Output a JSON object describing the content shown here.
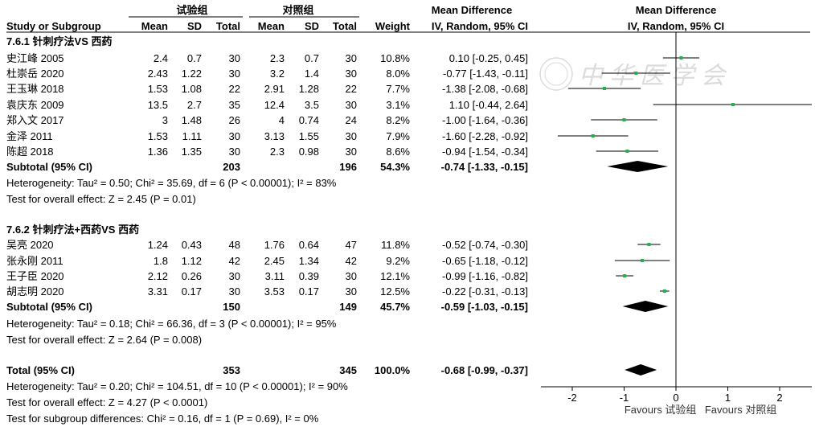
{
  "chart_data": {
    "type": "forest",
    "headers": {
      "group_exp": "试验组",
      "group_ctrl": "对照组",
      "study": "Study or Subgroup",
      "mean": "Mean",
      "sd": "SD",
      "total": "Total",
      "weight": "Weight",
      "md_title": "Mean Difference",
      "md_method": "IV, Random, 95% CI",
      "plot_title": "Mean Difference",
      "plot_method": "IV, Random, 95% CI"
    },
    "subgroups": [
      {
        "label": "7.6.1 针刺疗法VS 西药",
        "studies": [
          {
            "name": "史江峰 2005",
            "em": "2.4",
            "esd": "0.7",
            "en": "30",
            "cm": "2.3",
            "csd": "0.7",
            "cn": "30",
            "w": "10.8%",
            "ci": "0.10 [-0.25, 0.45]",
            "md": 0.1,
            "lo": -0.25,
            "hi": 0.45
          },
          {
            "name": "杜崇岳 2020",
            "em": "2.43",
            "esd": "1.22",
            "en": "30",
            "cm": "3.2",
            "csd": "1.4",
            "cn": "30",
            "w": "8.0%",
            "ci": "-0.77 [-1.43, -0.11]",
            "md": -0.77,
            "lo": -1.43,
            "hi": -0.11
          },
          {
            "name": "王玉琳 2018",
            "em": "1.53",
            "esd": "1.08",
            "en": "22",
            "cm": "2.91",
            "csd": "1.28",
            "cn": "22",
            "w": "7.7%",
            "ci": "-1.38 [-2.08, -0.68]",
            "md": -1.38,
            "lo": -2.08,
            "hi": -0.68
          },
          {
            "name": "袁庆东 2009",
            "em": "13.5",
            "esd": "2.7",
            "en": "35",
            "cm": "12.4",
            "csd": "3.5",
            "cn": "30",
            "w": "3.1%",
            "ci": "1.10 [-0.44, 2.64]",
            "md": 1.1,
            "lo": -0.44,
            "hi": 2.64
          },
          {
            "name": "郑入文 2017",
            "em": "3",
            "esd": "1.48",
            "en": "26",
            "cm": "4",
            "csd": "0.74",
            "cn": "24",
            "w": "8.2%",
            "ci": "-1.00 [-1.64, -0.36]",
            "md": -1.0,
            "lo": -1.64,
            "hi": -0.36
          },
          {
            "name": "金泽 2011",
            "em": "1.53",
            "esd": "1.11",
            "en": "30",
            "cm": "3.13",
            "csd": "1.55",
            "cn": "30",
            "w": "7.9%",
            "ci": "-1.60 [-2.28, -0.92]",
            "md": -1.6,
            "lo": -2.28,
            "hi": -0.92
          },
          {
            "name": "陈超 2018",
            "em": "1.36",
            "esd": "1.35",
            "en": "30",
            "cm": "2.3",
            "csd": "0.98",
            "cn": "30",
            "w": "8.6%",
            "ci": "-0.94 [-1.54, -0.34]",
            "md": -0.94,
            "lo": -1.54,
            "hi": -0.34
          }
        ],
        "subtotal": {
          "label": "Subtotal (95% CI)",
          "en": "203",
          "cn": "196",
          "w": "54.3%",
          "ci": "-0.74 [-1.33, -0.15]",
          "md": -0.74,
          "lo": -1.33,
          "hi": -0.15
        },
        "heterogeneity": "Heterogeneity: Tau² = 0.50; Chi² = 35.69, df = 6 (P < 0.00001); I² = 83%",
        "overall": "Test for overall effect: Z = 2.45 (P = 0.01)"
      },
      {
        "label": "7.6.2 针刺疗法+西药VS 西药",
        "studies": [
          {
            "name": "吴亮 2020",
            "em": "1.24",
            "esd": "0.43",
            "en": "48",
            "cm": "1.76",
            "csd": "0.64",
            "cn": "47",
            "w": "11.8%",
            "ci": "-0.52 [-0.74, -0.30]",
            "md": -0.52,
            "lo": -0.74,
            "hi": -0.3
          },
          {
            "name": "张永刚 2011",
            "em": "1.8",
            "esd": "1.12",
            "en": "42",
            "cm": "2.45",
            "csd": "1.34",
            "cn": "42",
            "w": "9.2%",
            "ci": "-0.65 [-1.18, -0.12]",
            "md": -0.65,
            "lo": -1.18,
            "hi": -0.12
          },
          {
            "name": "王子臣 2020",
            "em": "2.12",
            "esd": "0.26",
            "en": "30",
            "cm": "3.11",
            "csd": "0.39",
            "cn": "30",
            "w": "12.1%",
            "ci": "-0.99 [-1.16, -0.82]",
            "md": -0.99,
            "lo": -1.16,
            "hi": -0.82
          },
          {
            "name": "胡志明 2020",
            "em": "3.31",
            "esd": "0.17",
            "en": "30",
            "cm": "3.53",
            "csd": "0.17",
            "cn": "30",
            "w": "12.5%",
            "ci": "-0.22 [-0.31, -0.13]",
            "md": -0.22,
            "lo": -0.31,
            "hi": -0.13
          }
        ],
        "subtotal": {
          "label": "Subtotal (95% CI)",
          "en": "150",
          "cn": "149",
          "w": "45.7%",
          "ci": "-0.59 [-1.03, -0.15]",
          "md": -0.59,
          "lo": -1.03,
          "hi": -0.15
        },
        "heterogeneity": "Heterogeneity: Tau² = 0.18; Chi² = 66.36, df = 3 (P < 0.00001); I² = 95%",
        "overall": "Test for overall effect: Z = 2.64 (P = 0.008)"
      }
    ],
    "total": {
      "label": "Total (95% CI)",
      "en": "353",
      "cn": "345",
      "w": "100.0%",
      "ci": "-0.68 [-0.99, -0.37]",
      "md": -0.68,
      "lo": -0.99,
      "hi": -0.37
    },
    "total_heterogeneity": "Heterogeneity: Tau² = 0.20; Chi² = 104.51, df = 10 (P < 0.00001); I² = 90%",
    "total_overall": "Test for overall effect: Z = 4.27 (P < 0.0001)",
    "subgroup_diff": "Test for subgroup differences: Chi² = 0.16, df = 1 (P = 0.69), I² = 0%",
    "axis": {
      "xlim": [
        -2.8,
        2.6
      ],
      "ticks": [
        -2,
        -1,
        0,
        1,
        2
      ],
      "tick_labels": [
        "-2",
        "-1",
        "0",
        "1",
        "2"
      ]
    },
    "favours_left": "Favours 试验组",
    "favours_right": "Favours 对照组",
    "point_color": "#22b14c",
    "watermark": "中华医学会"
  }
}
